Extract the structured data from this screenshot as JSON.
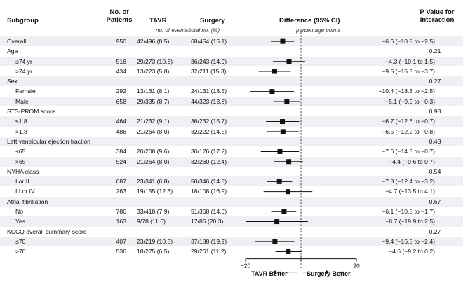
{
  "headers": {
    "subgroup": "Subgroup",
    "patients": [
      "No. of",
      "Patients"
    ],
    "tavr": "TAVR",
    "surgery": "Surgery",
    "difference": "Difference (95% CI)",
    "pvalue": [
      "P Value for",
      "Interaction"
    ],
    "events_note": "no. of events/total no. (%)",
    "pct_note": "percentage points"
  },
  "chart_data": {
    "type": "forest",
    "xlim": [
      -20,
      20
    ],
    "ticks": [
      -20,
      0,
      20
    ],
    "tick_labels": [
      "−20",
      "0",
      "20"
    ],
    "reference_line": 0,
    "left_label": "TAVR Better",
    "right_label": "Surgery Better",
    "rows": [
      {
        "label": "Overall",
        "indent": false,
        "n": "950",
        "tavr": "42/496 (8.5)",
        "surgery": "68/454 (15.1)",
        "est": -6.6,
        "lo": -10.8,
        "hi": -2.5,
        "diff": "−6.6 (−10.8 to −2.5)",
        "p": "",
        "shade": true
      },
      {
        "label": "Age",
        "indent": false,
        "n": "",
        "tavr": "",
        "surgery": "",
        "est": null,
        "lo": null,
        "hi": null,
        "diff": "",
        "p": "0.21",
        "shade": false
      },
      {
        "label": "≤74 yr",
        "indent": true,
        "n": "516",
        "tavr": "29/273 (10.6)",
        "surgery": "36/243 (14.9)",
        "est": -4.3,
        "lo": -10.1,
        "hi": 1.5,
        "diff": "−4.3 (−10.1 to 1.5)",
        "p": "",
        "shade": true
      },
      {
        "label": ">74 yr",
        "indent": true,
        "n": "434",
        "tavr": "13/223 (5.8)",
        "surgery": "32/211 (15.3)",
        "est": -9.5,
        "lo": -15.3,
        "hi": -3.7,
        "diff": "−9.5 (−15.3 to −3.7)",
        "p": "",
        "shade": false
      },
      {
        "label": "Sex",
        "indent": false,
        "n": "",
        "tavr": "",
        "surgery": "",
        "est": null,
        "lo": null,
        "hi": null,
        "diff": "",
        "p": "0.27",
        "shade": true
      },
      {
        "label": "Female",
        "indent": true,
        "n": "292",
        "tavr": "13/161 (8.1)",
        "surgery": "24/131 (18.5)",
        "est": -10.4,
        "lo": -18.3,
        "hi": -2.5,
        "diff": "−10.4 (−18.3 to −2.5)",
        "p": "",
        "shade": false
      },
      {
        "label": "Male",
        "indent": true,
        "n": "658",
        "tavr": "29/335 (8.7)",
        "surgery": "44/323 (13.8)",
        "est": -5.1,
        "lo": -9.9,
        "hi": -0.3,
        "diff": "−5.1 (−9.9 to −0.3)",
        "p": "",
        "shade": true
      },
      {
        "label": "STS-PROM score",
        "indent": false,
        "n": "",
        "tavr": "",
        "surgery": "",
        "est": null,
        "lo": null,
        "hi": null,
        "diff": "",
        "p": "0.98",
        "shade": false
      },
      {
        "label": "≤1.8",
        "indent": true,
        "n": "464",
        "tavr": "21/232 (9.1)",
        "surgery": "36/232 (15.7)",
        "est": -6.7,
        "lo": -12.6,
        "hi": -0.7,
        "diff": "−6.7 (−12.6 to −0.7)",
        "p": "",
        "shade": true
      },
      {
        "label": ">1.8",
        "indent": true,
        "n": "486",
        "tavr": "21/264 (8.0)",
        "surgery": "32/222 (14.5)",
        "est": -6.5,
        "lo": -12.2,
        "hi": -0.8,
        "diff": "−6.5 (−12.2 to −0.8)",
        "p": "",
        "shade": false
      },
      {
        "label": "Left ventricular ejection fraction",
        "indent": false,
        "n": "",
        "tavr": "",
        "surgery": "",
        "est": null,
        "lo": null,
        "hi": null,
        "diff": "",
        "p": "0.48",
        "shade": true
      },
      {
        "label": "≤65",
        "indent": true,
        "n": "384",
        "tavr": "20/208 (9.6)",
        "surgery": "30/176 (17.2)",
        "est": -7.6,
        "lo": -14.5,
        "hi": -0.7,
        "diff": "−7.6 (−14.5 to −0.7)",
        "p": "",
        "shade": false
      },
      {
        "label": ">65",
        "indent": true,
        "n": "524",
        "tavr": "21/264 (8.0)",
        "surgery": "32/260 (12.4)",
        "est": -4.4,
        "lo": -9.6,
        "hi": 0.7,
        "diff": "−4.4 (−9.6 to 0.7)",
        "p": "",
        "shade": true
      },
      {
        "label": "NYHA class",
        "indent": false,
        "n": "",
        "tavr": "",
        "surgery": "",
        "est": null,
        "lo": null,
        "hi": null,
        "diff": "",
        "p": "0.54",
        "shade": false
      },
      {
        "label": "I or II",
        "indent": true,
        "n": "687",
        "tavr": "23/341 (6.8)",
        "surgery": "50/346 (14.5)",
        "est": -7.8,
        "lo": -12.4,
        "hi": -3.2,
        "diff": "−7.8 (−12.4 to −3.2)",
        "p": "",
        "shade": true
      },
      {
        "label": "III or IV",
        "indent": true,
        "n": "263",
        "tavr": "19/155 (12.3)",
        "surgery": "18/108 (16.9)",
        "est": -4.7,
        "lo": -13.5,
        "hi": 4.1,
        "diff": "−4.7 (−13.5 to 4.1)",
        "p": "",
        "shade": false
      },
      {
        "label": "Atrial fibrillation",
        "indent": false,
        "n": "",
        "tavr": "",
        "surgery": "",
        "est": null,
        "lo": null,
        "hi": null,
        "diff": "",
        "p": "0.67",
        "shade": true
      },
      {
        "label": "No",
        "indent": true,
        "n": "786",
        "tavr": "33/418 (7.9)",
        "surgery": "51/368 (14.0)",
        "est": -6.1,
        "lo": -10.5,
        "hi": -1.7,
        "diff": "−6.1 (−10.5 to −1.7)",
        "p": "",
        "shade": false
      },
      {
        "label": "Yes",
        "indent": true,
        "n": "163",
        "tavr": "9/78 (11.6)",
        "surgery": "17/85 (20.3)",
        "est": -8.7,
        "lo": -19.9,
        "hi": 2.5,
        "diff": "−8.7 (−19.9 to 2.5)",
        "p": "",
        "shade": true
      },
      {
        "label": "KCCQ overall summary score",
        "indent": false,
        "n": "",
        "tavr": "",
        "surgery": "",
        "est": null,
        "lo": null,
        "hi": null,
        "diff": "",
        "p": "0.27",
        "shade": false
      },
      {
        "label": "≤70",
        "indent": true,
        "n": "407",
        "tavr": "23/219 (10.5)",
        "surgery": "37/188 (19.9)",
        "est": -9.4,
        "lo": -16.5,
        "hi": -2.4,
        "diff": "−9.4 (−16.5 to −2.4)",
        "p": "",
        "shade": true
      },
      {
        "label": ">70",
        "indent": true,
        "n": "536",
        "tavr": "18/275 (6.5)",
        "surgery": "29/261 (11.2)",
        "est": -4.6,
        "lo": -9.2,
        "hi": 0.2,
        "diff": "−4.6 (−9.2 to 0.2)",
        "p": "",
        "shade": false
      }
    ]
  }
}
